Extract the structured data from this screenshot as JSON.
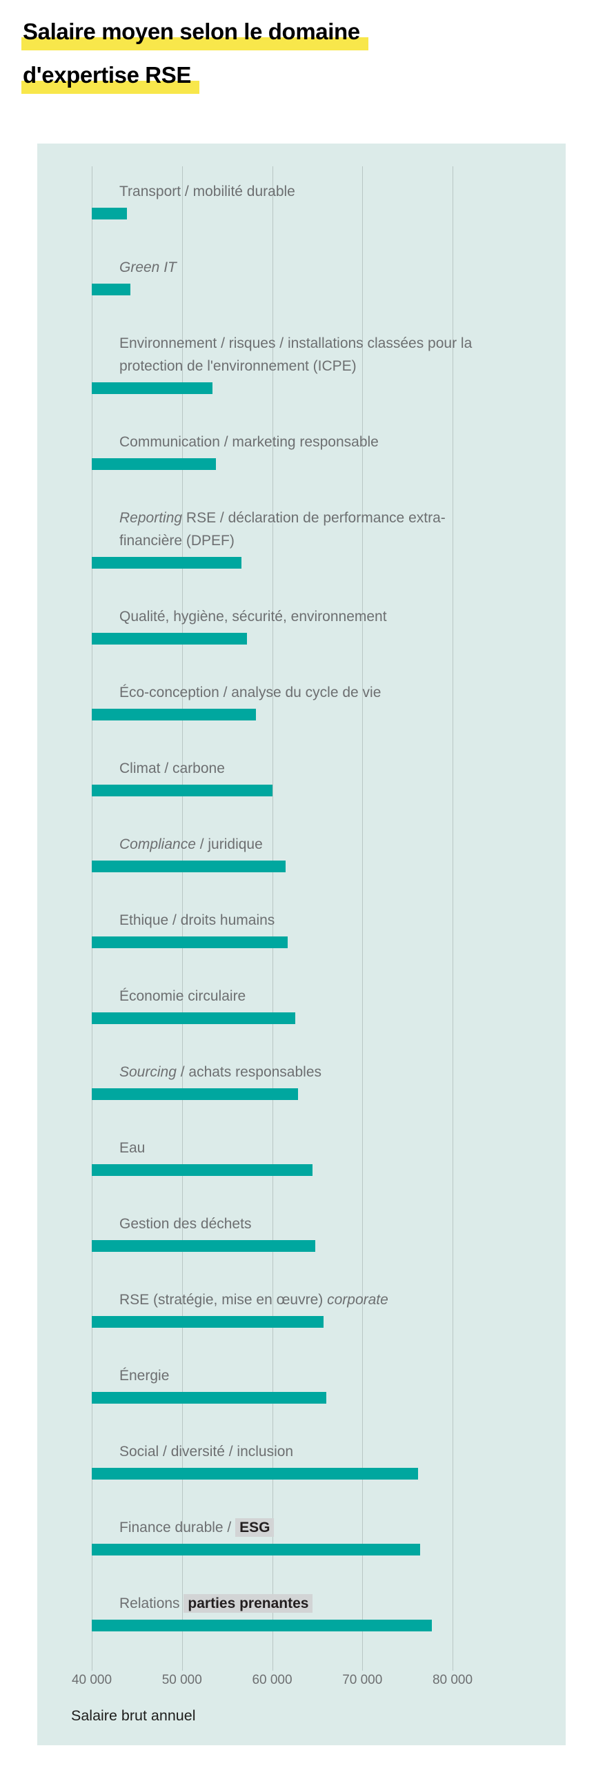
{
  "title": {
    "line1": "Salaire moyen selon le domaine",
    "line2": "d'expertise RSE"
  },
  "colors": {
    "bar": "#00a79f",
    "chart_background": "#dcebe9",
    "gridline": "#b9c6c4",
    "title_highlight": "#f8e74b",
    "label_text": "#6d6f71",
    "label_emphasis_text": "#231f20",
    "label_emphasis_background": "#d2d4d5"
  },
  "chart_data": {
    "type": "bar",
    "orientation": "horizontal",
    "grid": true,
    "legend": false,
    "x_axis": {
      "min": 40000,
      "max": 80000,
      "ticks": [
        40000,
        50000,
        60000,
        70000,
        80000
      ],
      "tick_labels": [
        "40 000",
        "50 000",
        "60 000",
        "70 000",
        "80 000"
      ],
      "title": "Salaire brut annuel"
    },
    "categories": [
      "Transport / mobilité durable",
      "Green IT",
      "Environnement / risques / installations classées pour la protection de l'environnement (ICPE)",
      "Communication / marketing responsable",
      "Reporting RSE / déclaration de performance extra-financière (DPEF)",
      "Qualité, hygiène, sécurité, environnement",
      "Éco-conception / analyse du cycle de vie",
      "Climat / carbone",
      "Compliance / juridique",
      "Ethique / droits humains",
      "Économie circulaire",
      "Sourcing / achats responsables",
      "Eau",
      "Gestion des déchets",
      "RSE (stratégie, mise en œuvre) corporate",
      "Énergie",
      "Social / diversité / inclusion",
      "Finance durable / ESG",
      "Relations parties prenantes"
    ],
    "values": [
      43900,
      44300,
      53400,
      53800,
      56600,
      57200,
      58200,
      60000,
      61500,
      61700,
      62600,
      62900,
      64500,
      64800,
      65700,
      66000,
      76200,
      76400,
      77700
    ],
    "rows": [
      {
        "value": 43900,
        "segments": [
          {
            "text": "Transport / mobilité durable"
          }
        ]
      },
      {
        "value": 44300,
        "segments": [
          {
            "text": "Green IT",
            "italic": true
          }
        ]
      },
      {
        "value": 53400,
        "segments": [
          {
            "text": "Environnement / risques / installations classées pour la protection de l'environnement (ICPE)"
          }
        ]
      },
      {
        "value": 53800,
        "segments": [
          {
            "text": "Communication / marketing responsable"
          }
        ]
      },
      {
        "value": 56600,
        "segments": [
          {
            "text": "Reporting",
            "italic": true
          },
          {
            "text": " RSE / déclaration de performance extra-financière (DPEF)"
          }
        ]
      },
      {
        "value": 57200,
        "segments": [
          {
            "text": "Qualité, hygiène, sécurité, environnement"
          }
        ]
      },
      {
        "value": 58200,
        "segments": [
          {
            "text": "Éco-conception / analyse du cycle de vie"
          }
        ]
      },
      {
        "value": 60000,
        "segments": [
          {
            "text": "Climat / carbone"
          }
        ]
      },
      {
        "value": 61500,
        "segments": [
          {
            "text": "Compliance",
            "italic": true
          },
          {
            "text": " / juridique"
          }
        ]
      },
      {
        "value": 61700,
        "segments": [
          {
            "text": "Ethique / droits humains"
          }
        ]
      },
      {
        "value": 62600,
        "segments": [
          {
            "text": "Économie circulaire"
          }
        ]
      },
      {
        "value": 62900,
        "segments": [
          {
            "text": "Sourcing",
            "italic": true
          },
          {
            "text": " / achats responsables"
          }
        ]
      },
      {
        "value": 64500,
        "segments": [
          {
            "text": "Eau"
          }
        ]
      },
      {
        "value": 64800,
        "segments": [
          {
            "text": "Gestion des déchets"
          }
        ]
      },
      {
        "value": 65700,
        "segments": [
          {
            "text": "RSE (stratégie, mise en œuvre) "
          },
          {
            "text": "corporate",
            "italic": true
          }
        ]
      },
      {
        "value": 66000,
        "segments": [
          {
            "text": "Énergie"
          }
        ]
      },
      {
        "value": 76200,
        "segments": [
          {
            "text": "Social / diversité / inclusion"
          }
        ]
      },
      {
        "value": 76400,
        "segments": [
          {
            "text": "Finance durable / "
          },
          {
            "text": "ESG",
            "bold": true,
            "highlight": true
          }
        ]
      },
      {
        "value": 77700,
        "segments": [
          {
            "text": "Relations ",
            "normal": true
          },
          {
            "text": "parties prenantes",
            "bold": true,
            "highlight": true
          }
        ]
      }
    ]
  }
}
